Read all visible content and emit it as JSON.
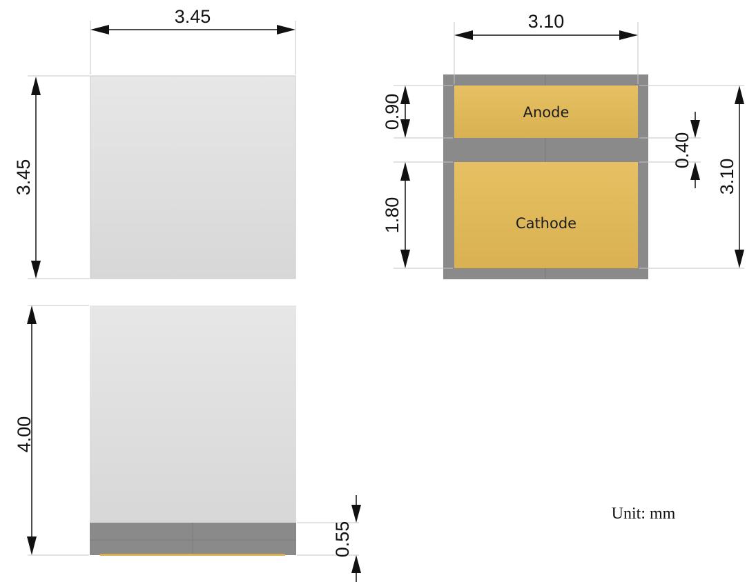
{
  "top_view": {
    "width_label": "3.45",
    "height_label": "3.45"
  },
  "side_view": {
    "height_label": "4.00",
    "base_label": "0.55"
  },
  "bottom_view": {
    "width_label": "3.10",
    "height_label": "3.10",
    "anode_height_label": "0.90",
    "gap_label": "0.40",
    "cathode_height_label": "1.80",
    "anode_label": "Anode",
    "cathode_label": "Cathode"
  },
  "unit_label": "Unit: mm",
  "colors": {
    "body_fill": "#dedede",
    "frame_fill": "#8a8a8a",
    "pad_fill": "#e3bd5e",
    "line": "#111111"
  }
}
